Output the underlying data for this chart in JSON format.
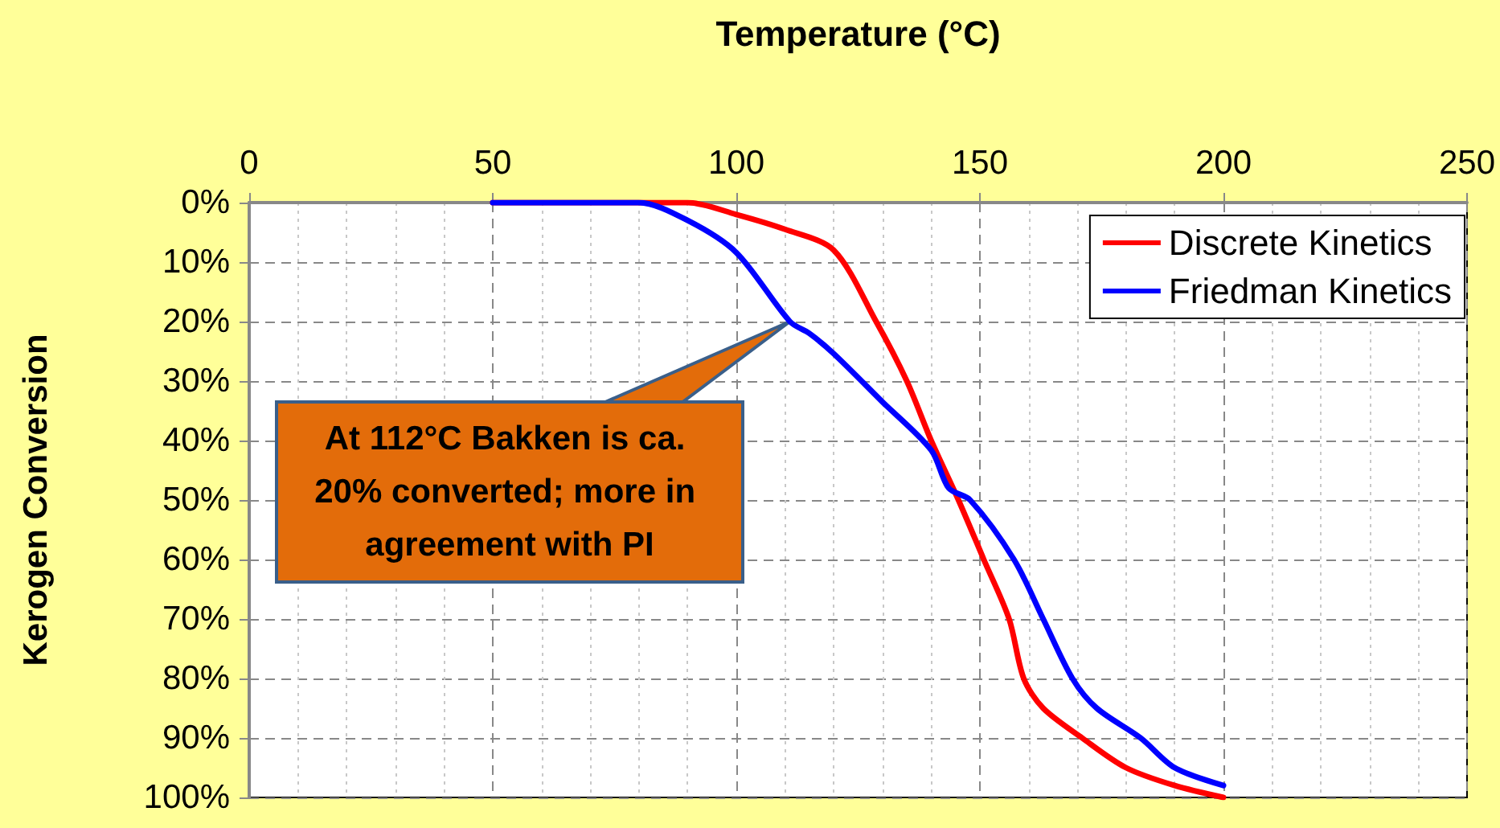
{
  "chart_data": {
    "type": "line",
    "xlabel": "Temperature (°C)",
    "ylabel": "Kerogen Conversion",
    "xlim": [
      0,
      250
    ],
    "xticks": [
      0,
      50,
      100,
      150,
      200,
      250
    ],
    "ylim": [
      100,
      0
    ],
    "yticks": [
      {
        "value": 0,
        "label": "0%"
      },
      {
        "value": 10,
        "label": "10%"
      },
      {
        "value": 20,
        "label": "20%"
      },
      {
        "value": 30,
        "label": "30%"
      },
      {
        "value": 40,
        "label": "40%"
      },
      {
        "value": 50,
        "label": "50%"
      },
      {
        "value": 60,
        "label": "60%"
      },
      {
        "value": 70,
        "label": "70%"
      },
      {
        "value": 80,
        "label": "80%"
      },
      {
        "value": 90,
        "label": "90%"
      },
      {
        "value": 100,
        "label": "100%"
      }
    ],
    "series": [
      {
        "name": "Discrete Kinetics",
        "color": "#ff0000",
        "x": [
          50,
          70,
          90,
          100,
          110,
          120,
          128.7,
          135,
          140,
          145.6,
          150.8,
          156,
          159,
          163,
          171,
          180,
          190,
          200
        ],
        "values": [
          0,
          0,
          0,
          2,
          4.5,
          8,
          20,
          30,
          40,
          50,
          60,
          70,
          80,
          85,
          90,
          95,
          98,
          100
        ]
      },
      {
        "name": "Friedman Kinetics",
        "color": "#0000ff",
        "x": [
          50,
          70,
          80,
          90,
          100,
          111,
          115,
          120,
          130,
          140,
          143.6,
          148,
          157,
          163,
          169,
          174,
          183,
          190,
          200
        ],
        "values": [
          0,
          0,
          0,
          3,
          8.4,
          20,
          22,
          25.4,
          33.5,
          41.6,
          48,
          50,
          60,
          70,
          80,
          85,
          90,
          95,
          98
        ]
      }
    ],
    "annotations": [
      {
        "text": "At 112°C Bakken is ca. 20% converted; more in agreement with PI",
        "x": 111,
        "y": 20
      }
    ],
    "grid": true,
    "legend": "top right",
    "marker": "none",
    "line_style": "solid"
  }
}
